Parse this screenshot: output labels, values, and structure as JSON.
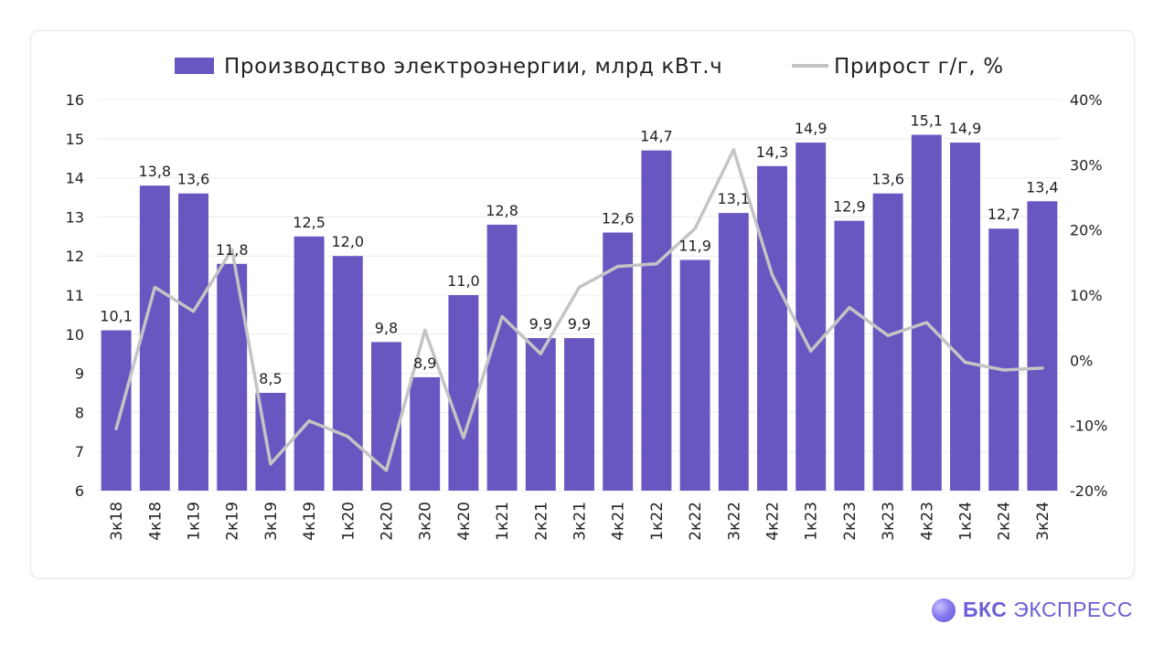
{
  "chart_data": {
    "type": "bar",
    "categories": [
      "3к18",
      "4к18",
      "1к19",
      "2к19",
      "3к19",
      "4к19",
      "1к20",
      "2к20",
      "3к20",
      "4к20",
      "1к21",
      "2к21",
      "3к21",
      "4к21",
      "1к22",
      "2к22",
      "3к22",
      "4к22",
      "1к23",
      "2к23",
      "3к23",
      "4к23",
      "1к24",
      "2к24",
      "3к24"
    ],
    "series": [
      {
        "name": "Производство электроэнергии, млрд кВт.ч",
        "type": "bar",
        "axis": "left",
        "color": "#6a56c1",
        "values": [
          10.1,
          13.8,
          13.6,
          11.8,
          8.5,
          12.5,
          12.0,
          9.8,
          8.9,
          11.0,
          12.8,
          9.9,
          9.9,
          12.6,
          14.7,
          11.9,
          13.1,
          14.3,
          14.9,
          12.9,
          13.6,
          15.1,
          14.9,
          12.7,
          13.4
        ],
        "labels": [
          "10,1",
          "13,8",
          "13,6",
          "11,8",
          "8,5",
          "12,5",
          "12,0",
          "9,8",
          "8,9",
          "11,0",
          "12,8",
          "9,9",
          "9,9",
          "12,6",
          "14,7",
          "11,9",
          "13,1",
          "14,3",
          "14,9",
          "12,9",
          "13,6",
          "15,1",
          "14,9",
          "12,7",
          "13,4"
        ]
      },
      {
        "name": "Прирост г/г, %",
        "type": "line",
        "axis": "right",
        "color": "#c4c4c4",
        "values": [
          -10.5,
          11.2,
          7.5,
          17.0,
          -15.9,
          -9.3,
          -11.7,
          -16.9,
          4.6,
          -11.9,
          6.7,
          1.0,
          11.2,
          14.4,
          14.8,
          20.2,
          32.3,
          13.1,
          1.4,
          8.1,
          3.8,
          5.8,
          -0.3,
          -1.5,
          -1.2
        ]
      }
    ],
    "y_left": {
      "min": 6,
      "max": 16,
      "ticks": [
        "6",
        "7",
        "8",
        "9",
        "10",
        "11",
        "12",
        "13",
        "14",
        "15",
        "16"
      ]
    },
    "y_right": {
      "min": -20,
      "max": 40,
      "ticks": [
        "-20%",
        "-10%",
        "0%",
        "10%",
        "20%",
        "30%",
        "40%"
      ]
    },
    "legend_position": "top-center",
    "grid": "horizontal"
  },
  "brand": {
    "bold": "БКС",
    "rest": "ЭКСПРЕСС",
    "color": "#6b5fd6"
  }
}
